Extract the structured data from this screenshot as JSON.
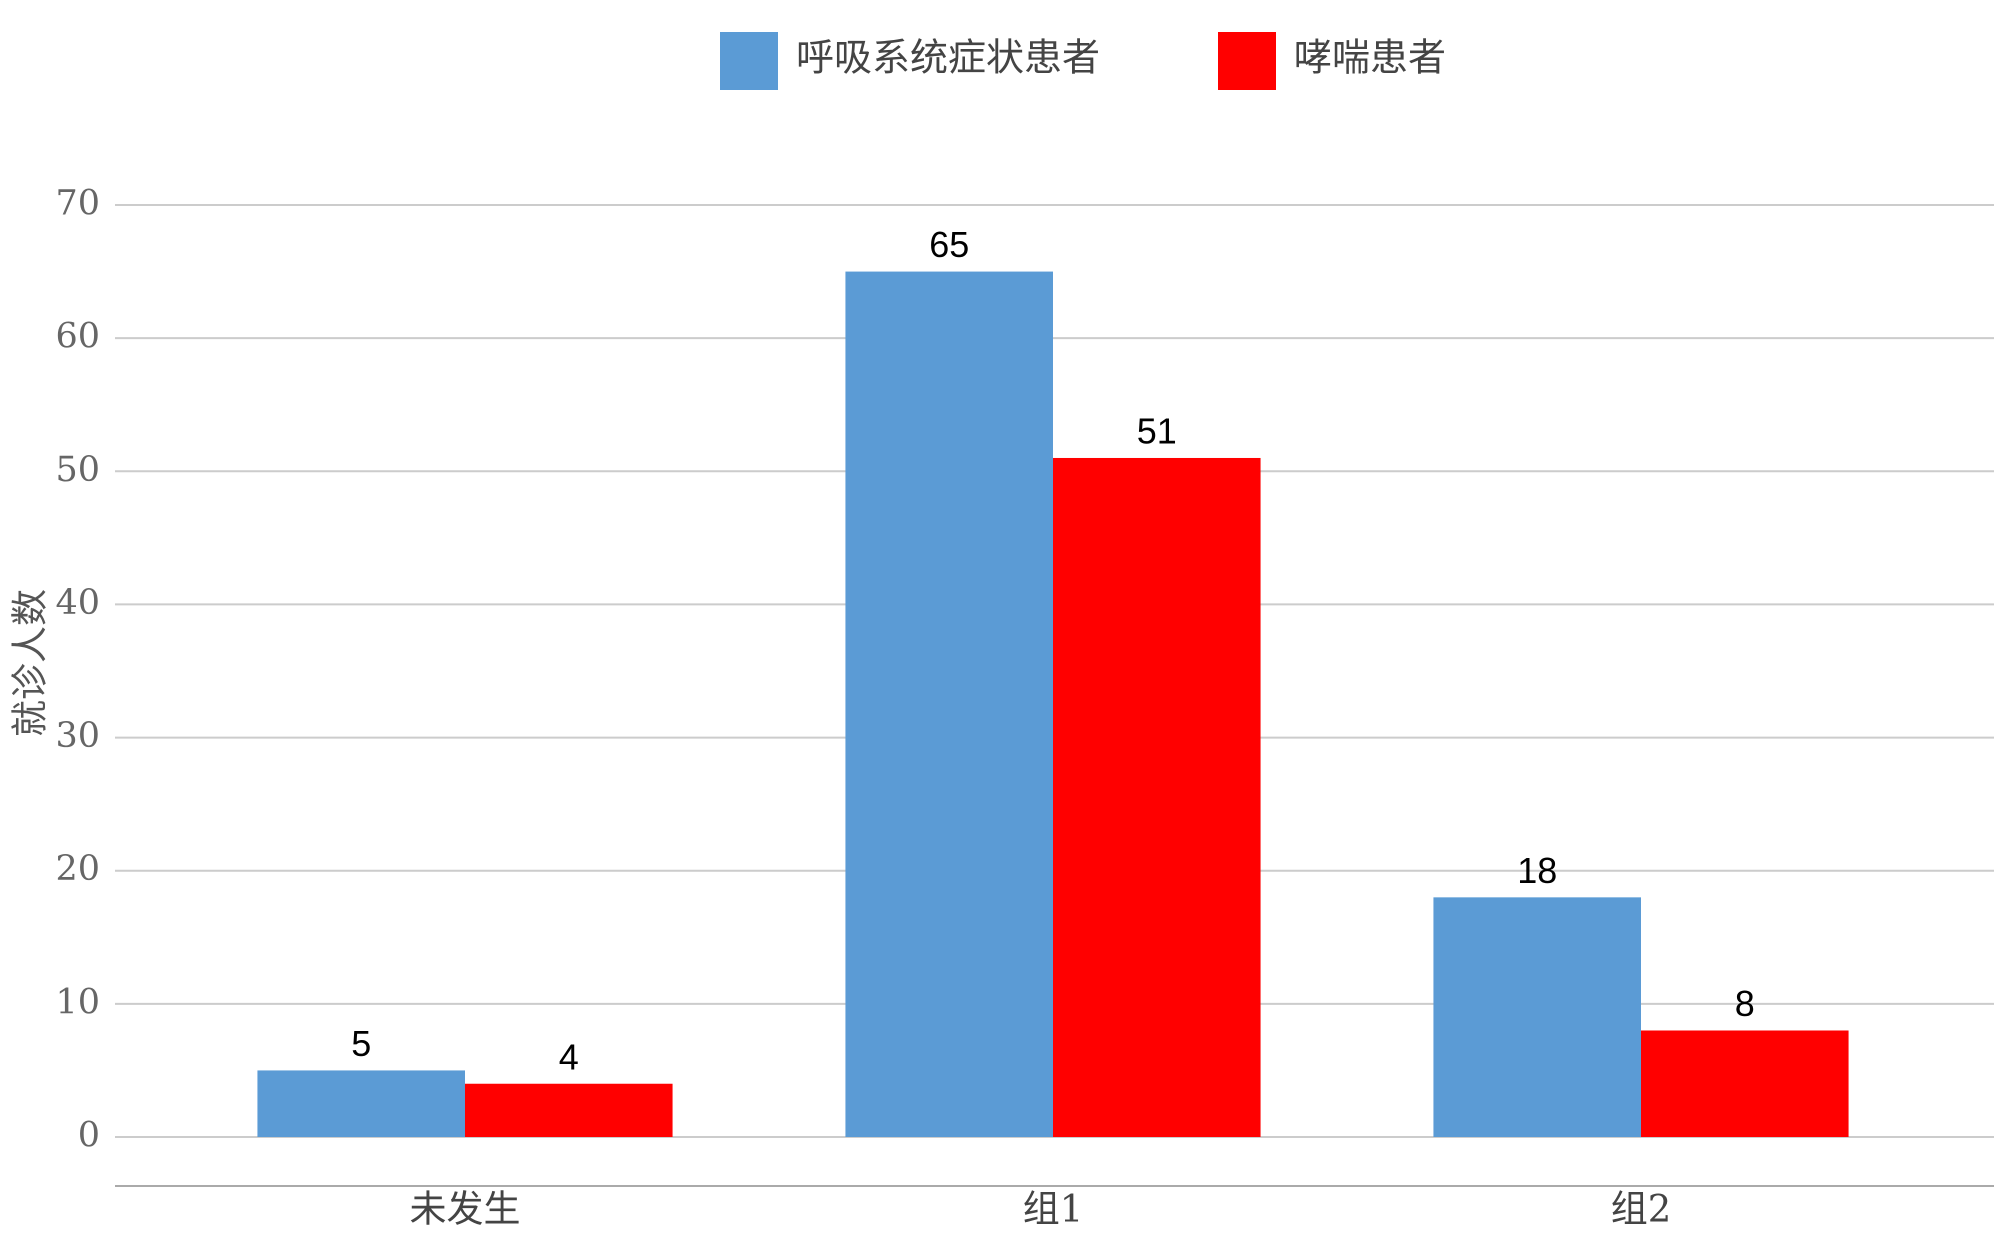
{
  "chart_data": {
    "type": "bar",
    "y_axis_label": "就诊人数",
    "categories": [
      "未发生",
      "组1",
      "组2"
    ],
    "series": [
      {
        "name": "呼吸系统症状患者",
        "color": "#5b9bd5",
        "values": [
          5,
          65,
          18
        ]
      },
      {
        "name": "哮喘患者",
        "color": "#ff0000",
        "values": [
          4,
          51,
          8
        ]
      }
    ],
    "ylim": [
      0,
      70
    ],
    "yticks": [
      0,
      10,
      20,
      30,
      40,
      50,
      60,
      70
    ],
    "grid": true,
    "legend": "top"
  }
}
